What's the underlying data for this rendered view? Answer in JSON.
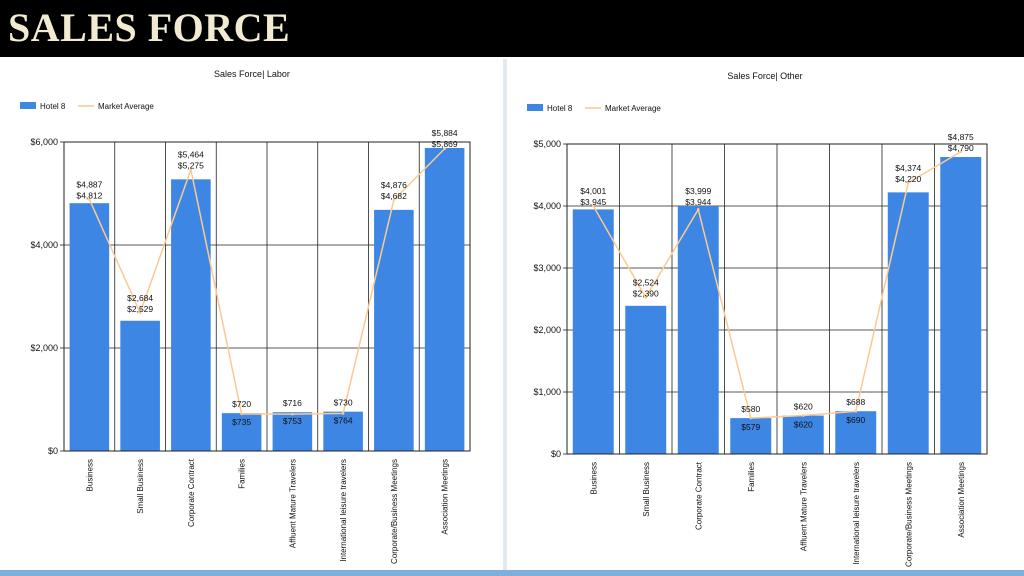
{
  "page": {
    "title": "SALES FORCE"
  },
  "colors": {
    "bar": "#3d86e4",
    "market_line": "#fcc991",
    "title_bar": "#000000",
    "title_text": "#f3ead2"
  },
  "chart_data": [
    {
      "type": "bar",
      "title": "Sales Force| Labor",
      "legend": [
        "Hotel 8",
        "Market Average"
      ],
      "legend_position": "top-left",
      "grid": true,
      "ylim": [
        0,
        6000
      ],
      "yticks": [
        0,
        2000,
        4000,
        6000
      ],
      "ytick_labels": [
        "$0",
        "$2,000",
        "$4,000",
        "$6,000"
      ],
      "categories": [
        "Business",
        "Small Business",
        "Corporate Contract",
        "Families",
        "Affluent Mature Travelers",
        "International leisure travelers",
        "Corporate/Business Meetings",
        "Association Meetings"
      ],
      "series": [
        {
          "name": "Hotel 8",
          "type": "bar",
          "values": [
            4812,
            2529,
            5275,
            735,
            753,
            764,
            4682,
            5884
          ],
          "labels": [
            "$4,812",
            "$2,529",
            "$5,275",
            "$735",
            "$753",
            "$764",
            "$4,682",
            "$5,884"
          ]
        },
        {
          "name": "Market Average",
          "type": "line",
          "values": [
            4887,
            2684,
            5464,
            720,
            716,
            730,
            4876,
            5869
          ],
          "labels": [
            "$4,887",
            "$2,684",
            "$5,464",
            "$720",
            "$716",
            "$730",
            "$4,876",
            "$5,869"
          ]
        }
      ]
    },
    {
      "type": "bar",
      "title": "Sales Force| Other",
      "legend": [
        "Hotel 8",
        "Market Average"
      ],
      "legend_position": "top-left",
      "grid": true,
      "ylim": [
        0,
        5000
      ],
      "yticks": [
        0,
        1000,
        2000,
        3000,
        4000,
        5000
      ],
      "ytick_labels": [
        "$0",
        "$1,000",
        "$2,000",
        "$3,000",
        "$4,000",
        "$5,000"
      ],
      "categories": [
        "Business",
        "Small Business",
        "Corporate Contract",
        "Families",
        "Affluent Mature Travelers",
        "International leisure travelers",
        "Corporate/Business Meetings",
        "Association Meetings"
      ],
      "series": [
        {
          "name": "Hotel 8",
          "type": "bar",
          "values": [
            3945,
            2390,
            3999,
            579,
            620,
            690,
            4220,
            4790
          ],
          "labels": [
            "$3,945",
            "$2,390",
            "$3,999",
            "$579",
            "$620",
            "$690",
            "$4,220",
            "$4,790"
          ]
        },
        {
          "name": "Market Average",
          "type": "line",
          "values": [
            4001,
            2524,
            3944,
            580,
            620,
            688,
            4374,
            4875
          ],
          "labels": [
            "$4,001",
            "$2,524",
            "$3,944",
            "$580",
            "$620",
            "$688",
            "$4,374",
            "$4,875"
          ]
        }
      ]
    }
  ]
}
